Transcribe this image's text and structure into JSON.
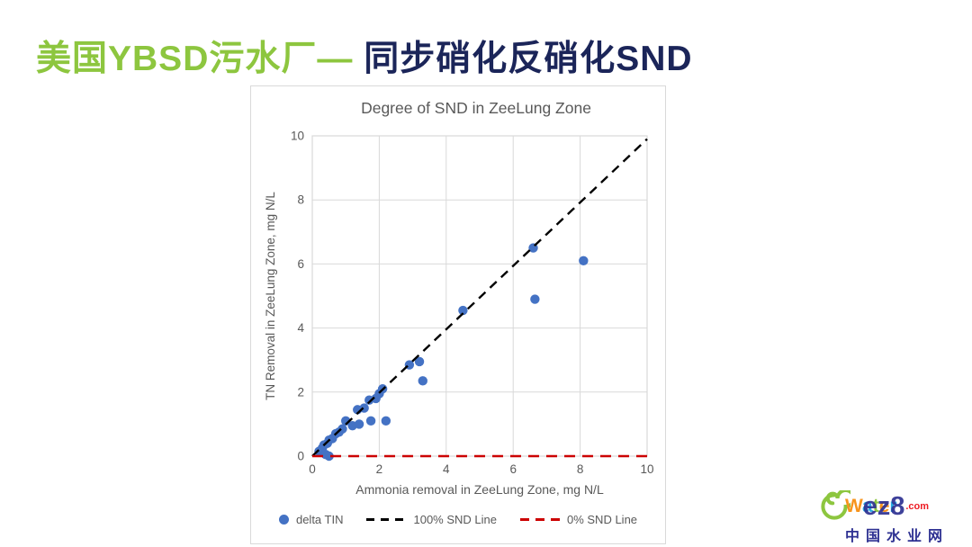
{
  "slide": {
    "title": {
      "green": "美国YBSD污水厂—",
      "navy": " 同步硝化反硝化SND"
    }
  },
  "chart_data": {
    "type": "scatter",
    "title": "Degree of SND in ZeeLung Zone",
    "xlabel": "Ammonia removal in ZeeLung Zone, mg N/L",
    "ylabel": "TN Removal in ZeeLung Zone, mg N/L",
    "xlim": [
      0,
      10
    ],
    "ylim": [
      0,
      10
    ],
    "xticks": [
      0,
      2,
      4,
      6,
      8,
      10
    ],
    "yticks": [
      0,
      2,
      4,
      6,
      8,
      10
    ],
    "grid": true,
    "grid_color": "#D9D9D9",
    "axis_text_color": "#595959",
    "legend_position": "bottom",
    "series": [
      {
        "name": "delta TIN",
        "type": "scatter",
        "color": "#4472C4",
        "points": [
          [
            0.2,
            0.15
          ],
          [
            0.3,
            0.25
          ],
          [
            0.35,
            0.35
          ],
          [
            0.4,
            0.05
          ],
          [
            0.45,
            0.4
          ],
          [
            0.5,
            0.0
          ],
          [
            0.5,
            0.5
          ],
          [
            0.6,
            0.55
          ],
          [
            0.7,
            0.7
          ],
          [
            0.8,
            0.75
          ],
          [
            0.9,
            0.85
          ],
          [
            1.0,
            1.1
          ],
          [
            1.2,
            0.95
          ],
          [
            1.35,
            1.45
          ],
          [
            1.4,
            1.0
          ],
          [
            1.55,
            1.5
          ],
          [
            1.7,
            1.75
          ],
          [
            1.75,
            1.1
          ],
          [
            1.9,
            1.8
          ],
          [
            2.0,
            1.95
          ],
          [
            2.1,
            2.1
          ],
          [
            2.2,
            1.1
          ],
          [
            2.9,
            2.85
          ],
          [
            3.2,
            2.95
          ],
          [
            3.3,
            2.35
          ],
          [
            4.5,
            4.55
          ],
          [
            6.6,
            6.5
          ],
          [
            6.65,
            4.9
          ],
          [
            8.1,
            6.1
          ]
        ]
      },
      {
        "name": "100% SND Line",
        "type": "line",
        "style": "dashed",
        "color": "#000000",
        "from": [
          0,
          0
        ],
        "to": [
          10,
          9.9
        ]
      },
      {
        "name": "0% SND Line",
        "type": "line",
        "style": "dashed",
        "color": "#CC0000",
        "from": [
          0,
          0
        ],
        "to": [
          10,
          0
        ]
      }
    ]
  },
  "watermark": {
    "letters": [
      "W",
      "a",
      "t",
      "e",
      "r"
    ],
    "overlay": "ez8",
    "tld": ".com",
    "subtitle": "中国水业网"
  }
}
